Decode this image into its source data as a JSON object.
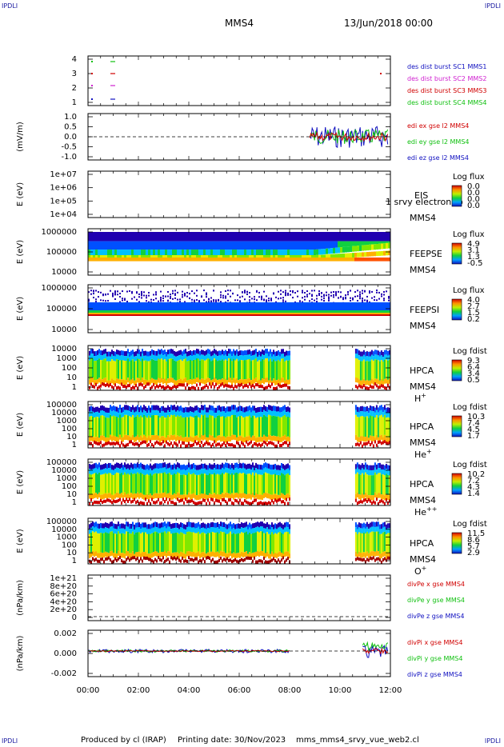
{
  "corners": [
    "IPDLI",
    "IPDLI",
    "IPDLI",
    "IPDLI"
  ],
  "header": {
    "spacecraft": "MMS4",
    "date": "13/Jun/2018 00:00"
  },
  "footer": {
    "produced_by": "Produced by cl (IRAP)",
    "printing_date": "Printing date: 30/Nov/2023",
    "config": "mms_mms4_srvy_vue_web2.cl"
  },
  "colors": {
    "axis": "#000000",
    "red": "#d00000",
    "green": "#10c010",
    "blue": "#1010c0",
    "magenta": "#d020d0"
  },
  "chart_data": [
    {
      "type": "line",
      "panel": "burst",
      "yticks": [
        "4",
        "3",
        "2",
        "1"
      ],
      "labels": [
        {
          "text": "des dist burst SC1 MMS1",
          "color": "#1010c0"
        },
        {
          "text": "des dist burst SC2 MMS2",
          "color": "#d020d0"
        },
        {
          "text": "des dist burst SC3 MMS3",
          "color": "#d00000"
        },
        {
          "text": "des dist burst SC4 MMS4",
          "color": "#10c010"
        }
      ]
    },
    {
      "type": "line",
      "panel": "edi",
      "ylabel": "(mV/m)",
      "yticks": [
        "1.0",
        "0.5",
        "0.0",
        "-0.5",
        "-1.0"
      ],
      "ylim": [
        -1.3,
        1.3
      ],
      "labels": [
        {
          "text": "edi ex gse l2 MMS4",
          "color": "#d00000"
        },
        {
          "text": "edi ey gse l2 MMS4",
          "color": "#10c010"
        },
        {
          "text": "edi ez gse l2 MMS4",
          "color": "#1010c0"
        }
      ],
      "data_start_hour": 8.8,
      "data_end_hour": 12.0
    },
    {
      "type": "heatmap",
      "panel": "eis",
      "ylabel": "E (eV)",
      "yticks": [
        "1e+07",
        "1e+06",
        "1e+05",
        "1e+04"
      ],
      "instrument": [
        "EIS",
        "MMS4"
      ],
      "overlay_text": "1 srvy electron to",
      "colorbar": {
        "title": "Log flux",
        "values": [
          "0.0",
          "0.0",
          "0.0",
          "0.0"
        ]
      }
    },
    {
      "type": "heatmap",
      "panel": "feepse",
      "ylabel": "E (eV)",
      "yticks": [
        "1000000",
        "100000",
        "10000"
      ],
      "instrument": [
        "FEEPSE",
        "MMS4"
      ],
      "colorbar": {
        "title": "Log flux",
        "values": [
          "4.9",
          "3.1",
          "1.3",
          "-0.5"
        ]
      }
    },
    {
      "type": "heatmap",
      "panel": "feepsi",
      "ylabel": "E (eV)",
      "yticks": [
        "1000000",
        "100000",
        "10000"
      ],
      "instrument": [
        "FEEPSI",
        "MMS4"
      ],
      "colorbar": {
        "title": "Log flux",
        "values": [
          "4.0",
          "2.7",
          "1.5",
          "0.2"
        ]
      }
    },
    {
      "type": "heatmap",
      "panel": "hpca_h",
      "ylabel": "E (eV)",
      "yticks": [
        "10000",
        "1000",
        "100",
        "10",
        "1"
      ],
      "instrument": [
        "HPCA",
        "MMS4"
      ],
      "species": {
        "base": "H",
        "sup": "+"
      },
      "colorbar": {
        "title": "Log fdist",
        "values": [
          "9.3",
          "6.4",
          "3.4",
          "0.5"
        ]
      },
      "gap_hours": [
        8.0,
        10.6
      ]
    },
    {
      "type": "heatmap",
      "panel": "hpca_he",
      "ylabel": "E (eV)",
      "yticks": [
        "100000",
        "10000",
        "1000",
        "100",
        "10",
        "1"
      ],
      "instrument": [
        "HPCA",
        "MMS4"
      ],
      "species": {
        "base": "He",
        "sup": "+"
      },
      "colorbar": {
        "title": "Log fdist",
        "values": [
          "10.3",
          "7.4",
          "4.5",
          "1.7"
        ]
      },
      "gap_hours": [
        8.0,
        10.6
      ]
    },
    {
      "type": "heatmap",
      "panel": "hpca_hepp",
      "ylabel": "E (eV)",
      "yticks": [
        "100000",
        "10000",
        "1000",
        "100",
        "10",
        "1"
      ],
      "instrument": [
        "HPCA",
        "MMS4"
      ],
      "species": {
        "base": "He",
        "sup": "++"
      },
      "colorbar": {
        "title": "Log fdist",
        "values": [
          "10.2",
          "7.2",
          "4.3",
          "1.4"
        ]
      },
      "gap_hours": [
        8.0,
        10.6
      ]
    },
    {
      "type": "heatmap",
      "panel": "hpca_o",
      "ylabel": "E (eV)",
      "yticks": [
        "100000",
        "10000",
        "1000",
        "100",
        "10",
        "1"
      ],
      "instrument": [
        "HPCA",
        "MMS4"
      ],
      "species": {
        "base": "O",
        "sup": "+"
      },
      "colorbar": {
        "title": "Log fdist",
        "values": [
          "11.5",
          "8.6",
          "5.7",
          "2.9"
        ]
      },
      "gap_hours": [
        8.0,
        10.6
      ]
    },
    {
      "type": "line",
      "panel": "divpe",
      "ylabel": "(nPa/km)",
      "yticks": [
        "1e+21",
        "8e+20",
        "6e+20",
        "4e+20",
        "2e+20",
        "0"
      ],
      "labels": [
        {
          "text": "divPe x gse MMS4",
          "color": "#d00000"
        },
        {
          "text": "divPe y gse MMS4",
          "color": "#10c010"
        },
        {
          "text": "divPe z gse MMS4",
          "color": "#1010c0"
        }
      ]
    },
    {
      "type": "line",
      "panel": "divpi",
      "ylabel": "(nPa/km)",
      "yticks": [
        "0.002",
        "0.000",
        "-0.002"
      ],
      "ylim": [
        -0.0035,
        0.003
      ],
      "labels": [
        {
          "text": "divPi x gse MMS4",
          "color": "#d00000"
        },
        {
          "text": "divPi y gse MMS4",
          "color": "#10c010"
        },
        {
          "text": "divPi z gse MMS4",
          "color": "#1010c0"
        }
      ],
      "xticks": [
        "00:00",
        "02:00",
        "04:00",
        "06:00",
        "08:00",
        "10:00",
        "12:00"
      ],
      "xlim_hours": [
        0,
        12
      ],
      "data_start_hour": 0.0,
      "data_gap_hours": [
        8.0,
        10.9
      ]
    }
  ]
}
